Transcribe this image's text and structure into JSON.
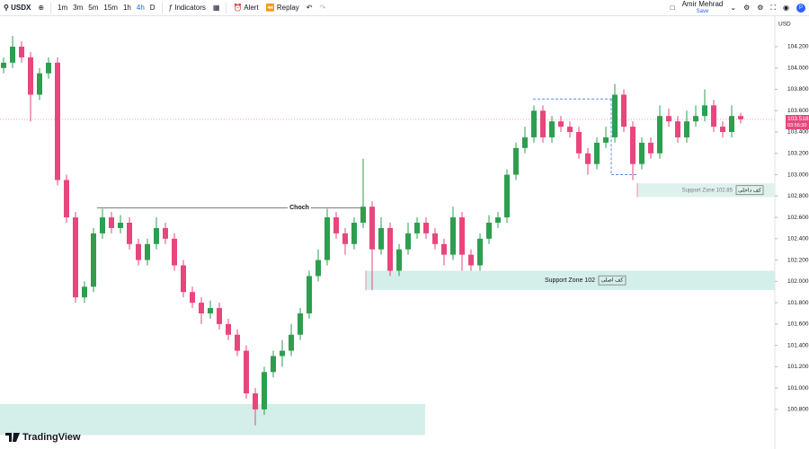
{
  "toolbar": {
    "symbol": "USDX",
    "intervals": [
      "1m",
      "3m",
      "5m",
      "15m",
      "1h",
      "4h",
      "D"
    ],
    "active_interval": "4h",
    "indicators": "Indicators",
    "alert": "Alert",
    "replay": "Replay",
    "user": "Amir Mehrad",
    "save": "Save"
  },
  "brand": "TradingView",
  "chart_data": {
    "type": "candlestick",
    "currency": "USD",
    "up_color": "#2e9e4f",
    "down_color": "#e8467c",
    "ylim": [
      100.614,
      104.486
    ],
    "yticks": [
      {
        "value": 104.2,
        "label": "104.200"
      },
      {
        "value": 104.0,
        "label": "104.000"
      },
      {
        "value": 103.8,
        "label": "103.800"
      },
      {
        "value": 103.6,
        "label": "103.600"
      },
      {
        "value": 103.4,
        "label": "103.400"
      },
      {
        "value": 103.2,
        "label": "103.200"
      },
      {
        "value": 103.0,
        "label": "103.000"
      },
      {
        "value": 102.8,
        "label": "102.800"
      },
      {
        "value": 102.6,
        "label": "102.600"
      },
      {
        "value": 102.4,
        "label": "102.400"
      },
      {
        "value": 102.2,
        "label": "102.200"
      },
      {
        "value": 102.0,
        "label": "102.000"
      },
      {
        "value": 101.8,
        "label": "101.800"
      },
      {
        "value": 101.6,
        "label": "101.600"
      },
      {
        "value": 101.4,
        "label": "101.400"
      },
      {
        "value": 101.2,
        "label": "101.200"
      },
      {
        "value": 101.0,
        "label": "101.000"
      },
      {
        "value": 100.8,
        "label": "100.800"
      }
    ],
    "last_price": {
      "value": 103.518,
      "label": "103.518"
    },
    "countdown": "03:56:30",
    "candles": [
      [
        104.0,
        104.1,
        103.95,
        104.05
      ],
      [
        104.05,
        104.3,
        104.0,
        104.2
      ],
      [
        104.2,
        104.25,
        104.05,
        104.1
      ],
      [
        104.1,
        104.15,
        103.5,
        103.75
      ],
      [
        103.75,
        104.0,
        103.7,
        103.95
      ],
      [
        103.95,
        104.1,
        103.9,
        104.05
      ],
      [
        104.05,
        104.1,
        102.9,
        102.95
      ],
      [
        102.95,
        103.0,
        102.55,
        102.6
      ],
      [
        102.6,
        102.65,
        101.8,
        101.85
      ],
      [
        101.85,
        102.0,
        101.8,
        101.95
      ],
      [
        101.95,
        102.5,
        101.9,
        102.45
      ],
      [
        102.45,
        102.68,
        102.4,
        102.6
      ],
      [
        102.6,
        102.65,
        102.45,
        102.5
      ],
      [
        102.5,
        102.62,
        102.45,
        102.55
      ],
      [
        102.55,
        102.6,
        102.3,
        102.35
      ],
      [
        102.35,
        102.4,
        102.15,
        102.2
      ],
      [
        102.2,
        102.4,
        102.15,
        102.35
      ],
      [
        102.35,
        102.6,
        102.3,
        102.5
      ],
      [
        102.5,
        102.55,
        102.35,
        102.4
      ],
      [
        102.4,
        102.45,
        102.1,
        102.15
      ],
      [
        102.15,
        102.2,
        101.85,
        101.9
      ],
      [
        101.9,
        101.95,
        101.75,
        101.8
      ],
      [
        101.8,
        101.85,
        101.6,
        101.7
      ],
      [
        101.7,
        101.82,
        101.65,
        101.75
      ],
      [
        101.75,
        101.8,
        101.55,
        101.6
      ],
      [
        101.6,
        101.65,
        101.45,
        101.5
      ],
      [
        101.5,
        101.55,
        101.3,
        101.35
      ],
      [
        101.35,
        101.4,
        100.9,
        100.95
      ],
      [
        100.95,
        101.0,
        100.65,
        100.8
      ],
      [
        100.8,
        101.2,
        100.75,
        101.15
      ],
      [
        101.15,
        101.35,
        101.1,
        101.3
      ],
      [
        101.3,
        101.45,
        101.2,
        101.35
      ],
      [
        101.35,
        101.6,
        101.3,
        101.5
      ],
      [
        101.5,
        101.75,
        101.45,
        101.7
      ],
      [
        101.7,
        102.1,
        101.65,
        102.05
      ],
      [
        102.05,
        102.3,
        102.0,
        102.2
      ],
      [
        102.2,
        102.68,
        102.15,
        102.6
      ],
      [
        102.6,
        102.65,
        102.4,
        102.45
      ],
      [
        102.45,
        102.5,
        102.25,
        102.35
      ],
      [
        102.35,
        102.6,
        102.3,
        102.55
      ],
      [
        102.55,
        103.15,
        102.5,
        102.7
      ],
      [
        102.7,
        102.75,
        101.92,
        102.3
      ],
      [
        102.3,
        102.6,
        102.25,
        102.5
      ],
      [
        102.5,
        102.55,
        102.05,
        102.1
      ],
      [
        102.1,
        102.35,
        102.05,
        102.3
      ],
      [
        102.3,
        102.55,
        102.25,
        102.45
      ],
      [
        102.45,
        102.6,
        102.4,
        102.55
      ],
      [
        102.55,
        102.6,
        102.4,
        102.45
      ],
      [
        102.45,
        102.5,
        102.3,
        102.35
      ],
      [
        102.35,
        102.4,
        102.15,
        102.25
      ],
      [
        102.25,
        102.7,
        102.2,
        102.6
      ],
      [
        102.6,
        102.65,
        102.1,
        102.25
      ],
      [
        102.25,
        102.3,
        102.1,
        102.15
      ],
      [
        102.15,
        102.45,
        102.1,
        102.4
      ],
      [
        102.4,
        102.62,
        102.35,
        102.55
      ],
      [
        102.55,
        102.65,
        102.5,
        102.6
      ],
      [
        102.6,
        103.05,
        102.55,
        103.0
      ],
      [
        103.0,
        103.3,
        102.95,
        103.25
      ],
      [
        103.25,
        103.45,
        103.2,
        103.35
      ],
      [
        103.35,
        103.65,
        103.3,
        103.6
      ],
      [
        103.6,
        103.65,
        103.3,
        103.35
      ],
      [
        103.35,
        103.55,
        103.3,
        103.5
      ],
      [
        103.5,
        103.55,
        103.4,
        103.45
      ],
      [
        103.45,
        103.5,
        103.35,
        103.4
      ],
      [
        103.4,
        103.45,
        103.15,
        103.2
      ],
      [
        103.2,
        103.25,
        103.0,
        103.1
      ],
      [
        103.1,
        103.35,
        103.05,
        103.3
      ],
      [
        103.3,
        103.45,
        103.25,
        103.35
      ],
      [
        103.35,
        103.85,
        103.3,
        103.75
      ],
      [
        103.75,
        103.8,
        103.4,
        103.45
      ],
      [
        103.45,
        103.5,
        102.95,
        103.1
      ],
      [
        103.1,
        103.35,
        103.05,
        103.3
      ],
      [
        103.3,
        103.35,
        103.15,
        103.2
      ],
      [
        103.2,
        103.65,
        103.15,
        103.55
      ],
      [
        103.55,
        103.62,
        103.45,
        103.5
      ],
      [
        103.5,
        103.55,
        103.3,
        103.35
      ],
      [
        103.35,
        103.6,
        103.3,
        103.5
      ],
      [
        103.5,
        103.65,
        103.45,
        103.55
      ],
      [
        103.55,
        103.8,
        103.5,
        103.65
      ],
      [
        103.65,
        103.7,
        103.4,
        103.45
      ],
      [
        103.45,
        103.5,
        103.35,
        103.4
      ],
      [
        103.4,
        103.65,
        103.35,
        103.55
      ],
      [
        103.55,
        103.58,
        103.48,
        103.52
      ]
    ],
    "zones": [
      {
        "label": "Support Zone 102",
        "tag": "کف اصلی",
        "top": 102.1,
        "bottom": 101.92,
        "color": "#d4eee9"
      },
      {
        "label": "Support Zone 102.85",
        "tag": "کف داخلی",
        "top": 102.92,
        "bottom": 102.79,
        "color": "#dff1ec"
      },
      {
        "top": 100.85,
        "bottom": 100.56,
        "color": "#d4eee9"
      }
    ],
    "choch": {
      "label": "Choch",
      "value": 102.69
    },
    "range_box": {
      "top": 103.71,
      "bottom": 103.0,
      "color": "#5b8def"
    }
  }
}
